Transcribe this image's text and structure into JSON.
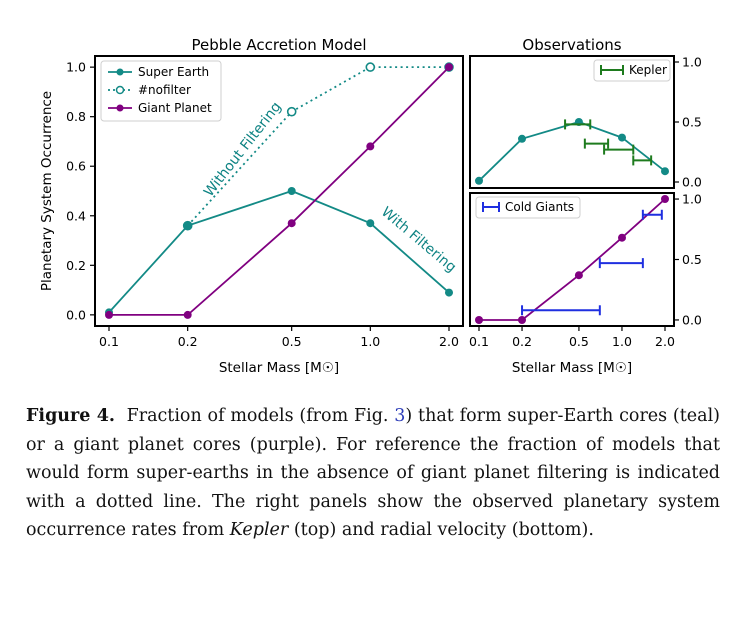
{
  "chart_data": [
    {
      "type": "line",
      "title": "Pebble Accretion Model",
      "xlabel": "Stellar Mass [M☉]",
      "ylabel": "Planetary System Occurrence",
      "x_ticks": [
        "0.1",
        "0.2",
        "0.5",
        "1.0",
        "2.0"
      ],
      "y_ticks": [
        "0.0",
        "0.2",
        "0.4",
        "0.6",
        "0.8",
        "1.0"
      ],
      "xlim": [
        0.1,
        2.0
      ],
      "ylim": [
        0.0,
        1.0
      ],
      "x_scale": "log",
      "legend_position": "top-left",
      "series": [
        {
          "name": "Super Earth",
          "color": "#138a86",
          "style": "solid",
          "marker": "filled-circle",
          "x": [
            0.1,
            0.2,
            0.5,
            1.0,
            2.0
          ],
          "y": [
            0.01,
            0.36,
            0.5,
            0.37,
            0.09
          ]
        },
        {
          "name": "#nofilter",
          "color": "#138a86",
          "style": "dotted",
          "marker": "open-circle",
          "x": [
            0.2,
            0.5,
            1.0,
            2.0
          ],
          "y": [
            0.36,
            0.82,
            1.0,
            1.0
          ]
        },
        {
          "name": "Giant Planet",
          "color": "#800080",
          "style": "solid",
          "marker": "filled-circle",
          "x": [
            0.1,
            0.2,
            0.5,
            1.0,
            2.0
          ],
          "y": [
            0.0,
            0.0,
            0.37,
            0.68,
            1.0
          ]
        }
      ],
      "annotations": [
        {
          "text": "Without Filtering"
        },
        {
          "text": "With Filtering"
        }
      ]
    },
    {
      "type": "line",
      "title": "Observations",
      "x_scale": "log",
      "xlim": [
        0.1,
        2.0
      ],
      "ylim": [
        0.0,
        1.0
      ],
      "y_ticks": [
        "0.0",
        "0.5",
        "1.0"
      ],
      "y_axis_side": "right",
      "legend_position": "top-right",
      "model_series": {
        "color": "#138a86",
        "x": [
          0.1,
          0.2,
          0.5,
          1.0,
          2.0
        ],
        "y": [
          0.01,
          0.36,
          0.5,
          0.37,
          0.09
        ]
      },
      "observed_series": {
        "name": "Kepler",
        "color": "#1e7b1e",
        "points": [
          {
            "x": 0.5,
            "xmin": 0.4,
            "xmax": 0.6,
            "y": 0.48
          },
          {
            "x": 0.67,
            "xmin": 0.55,
            "xmax": 0.8,
            "y": 0.32
          },
          {
            "x": 0.97,
            "xmin": 0.75,
            "xmax": 1.2,
            "y": 0.27
          },
          {
            "x": 1.4,
            "xmin": 1.2,
            "xmax": 1.6,
            "y": 0.18
          }
        ]
      }
    },
    {
      "type": "line",
      "xlabel": "Stellar Mass [M☉]",
      "x_scale": "log",
      "x_ticks": [
        "0.1",
        "0.2",
        "0.5",
        "1.0",
        "2.0"
      ],
      "xlim": [
        0.1,
        2.0
      ],
      "ylim": [
        0.0,
        1.0
      ],
      "y_ticks": [
        "0.0",
        "0.5",
        "1.0"
      ],
      "y_axis_side": "right",
      "legend_position": "top-left",
      "model_series": {
        "color": "#800080",
        "x": [
          0.1,
          0.2,
          0.5,
          1.0,
          2.0
        ],
        "y": [
          0.0,
          0.0,
          0.37,
          0.68,
          1.0
        ]
      },
      "observed_series": {
        "name": "Cold Giants",
        "color": "#1f2fe0",
        "points": [
          {
            "x": 0.4,
            "xmin": 0.2,
            "xmax": 0.7,
            "y": 0.08
          },
          {
            "x": 1.0,
            "xmin": 0.7,
            "xmax": 1.4,
            "y": 0.47
          },
          {
            "x": 1.6,
            "xmin": 1.4,
            "xmax": 1.9,
            "y": 0.87
          }
        ]
      }
    }
  ],
  "caption": {
    "label": "Figure 4.",
    "part1": "Fraction of models (from Fig.",
    "fig_ref": "3",
    "part2": ") that form super-Earth cores (teal) or a giant planet cores (purple). For reference the fraction of models that would form super-earths in the absence of giant planet filtering is indicated with a dotted line. The right panels show the observed planetary system occurrence rates from",
    "kepler": "Kepler",
    "part3": "(top) and radial velocity (bottom)."
  }
}
